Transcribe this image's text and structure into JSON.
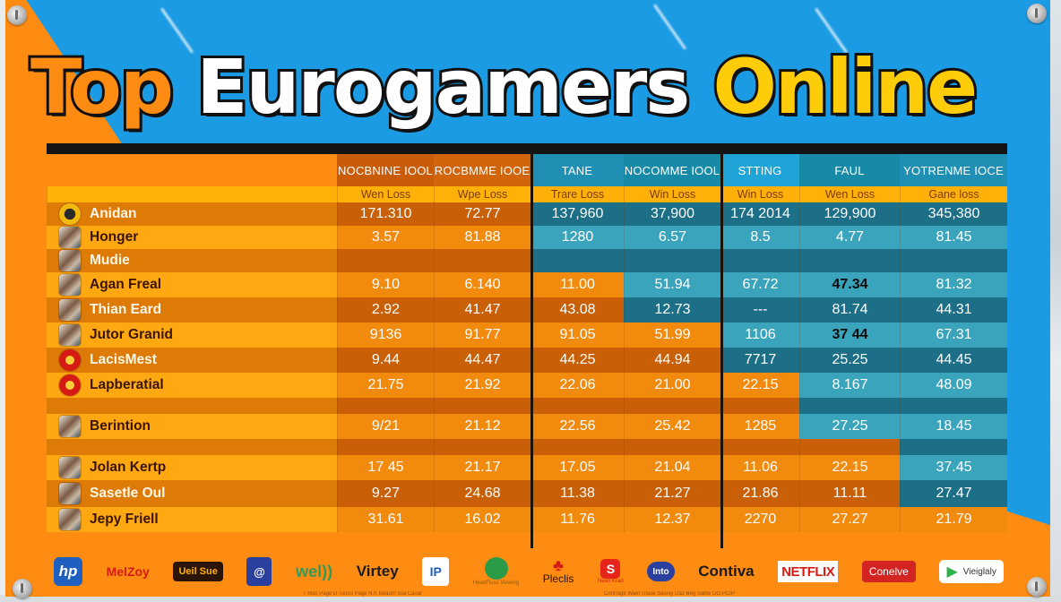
{
  "title": {
    "part1": "Top",
    "part2": "Eurogamers",
    "part3": "Online",
    "colors": {
      "part1": "#ff8c12",
      "part2": "#ffffff",
      "part3": "#ffcc0a",
      "outline": "#111111"
    }
  },
  "theme": {
    "orange": "#ff8c12",
    "blue": "#1b9be3",
    "subheader_yellow": "#ffb10a",
    "teal_dark": "#1c6f86",
    "teal_light": "#3ba4bd"
  },
  "table": {
    "columns": [
      {
        "header": "",
        "sub": ""
      },
      {
        "header": "NOCBNINE IOOL",
        "sub": "Wen Loss"
      },
      {
        "header": "ROCBMME IOOE",
        "sub": "Wpe Loss"
      },
      {
        "header": "TANE",
        "sub": "Trare Loss"
      },
      {
        "header": "NOCOMME IOOL",
        "sub": "Win Loss"
      },
      {
        "header": "STTING",
        "sub": "Win Loss"
      },
      {
        "header": "FAUL",
        "sub": "Wen Loss"
      },
      {
        "header": "YOTRENME IOCE",
        "sub": "Gane loss"
      }
    ],
    "rows": [
      {
        "name": "Anidan",
        "avatar": "emblem",
        "values": [
          "171.310",
          "72.77",
          "137,960",
          "37,900",
          "174 2014",
          "129,900",
          "345,380"
        ]
      },
      {
        "name": "Honger",
        "avatar": "photo",
        "values": [
          "3.57",
          "81.88",
          "1280",
          "6.57",
          "8.5",
          "4.77",
          "81.45"
        ]
      },
      {
        "name": "Mudie",
        "avatar": "photo",
        "values": [
          "",
          "",
          "",
          "",
          "",
          "",
          ""
        ]
      },
      {
        "name": "Agan Freal",
        "avatar": "photo",
        "values": [
          "9.10",
          "6.140",
          "11.00",
          "51.94",
          "67.72",
          "47.34",
          "81.32"
        ]
      },
      {
        "name": "Thian Eard",
        "avatar": "photo",
        "values": [
          "2.92",
          "41.47",
          "43.08",
          "12.73",
          "---",
          "81.74",
          "44.31"
        ]
      },
      {
        "name": "Jutor Granid",
        "avatar": "photo",
        "values": [
          "9136",
          "91.77",
          "91.05",
          "51.99",
          "1106",
          "37 44",
          "67.31"
        ]
      },
      {
        "name": "LacisMest",
        "avatar": "red-circle",
        "values": [
          "9.44",
          "44.47",
          "44.25",
          "44.94",
          "7717",
          "25.25",
          "44.45"
        ]
      },
      {
        "name": "Lapberatial",
        "avatar": "red-circle",
        "values": [
          "21.75",
          "21.92",
          "22.06",
          "21.00",
          "22.15",
          "8.167",
          "48.09"
        ]
      },
      {
        "name": "",
        "avatar": "",
        "values": [
          "",
          "",
          "",
          "",
          "",
          "",
          ""
        ]
      },
      {
        "name": "Berintion",
        "avatar": "photo",
        "values": [
          "9/21",
          "21.12",
          "22.56",
          "25.42",
          "1285",
          "27.25",
          "18.45"
        ]
      },
      {
        "name": "",
        "avatar": "",
        "values": [
          "",
          "",
          "",
          "",
          "",
          "",
          ""
        ]
      },
      {
        "name": "Jolan Kertp",
        "avatar": "photo",
        "values": [
          "17 45",
          "21.17",
          "17.05",
          "21.04",
          "11.06",
          "22.15",
          "37.45"
        ]
      },
      {
        "name": "Sasetle Oul",
        "avatar": "photo",
        "values": [
          "9.27",
          "24.68",
          "11.38",
          "21.27",
          "21.86",
          "11.11",
          "27.47"
        ]
      },
      {
        "name": "Jepy Friell",
        "avatar": "photo",
        "values": [
          "31.61",
          "16.02",
          "11.76",
          "12.37",
          "2270",
          "27.27",
          "21.79"
        ]
      }
    ]
  },
  "sponsors": [
    {
      "name": "hp",
      "style": "hp"
    },
    {
      "name": "MelZoy",
      "style": "red-text"
    },
    {
      "name": "Ueil Sue",
      "style": "boxed-dark"
    },
    {
      "name": "@",
      "style": "blue-square"
    },
    {
      "name": "wel))",
      "style": "green-text"
    },
    {
      "name": "Virtey",
      "style": "dark-text"
    },
    {
      "name": "IP",
      "style": "white-square"
    },
    {
      "name": "HeadFluss Viewing",
      "style": "green-circle"
    },
    {
      "name": "Pleclis",
      "style": "playstation"
    },
    {
      "name": "Neen Krad",
      "style": "red-s"
    },
    {
      "name": "Into",
      "style": "blue-pill"
    },
    {
      "name": "Contiva",
      "style": "dark-text"
    },
    {
      "name": "NETFLIX",
      "style": "netflix"
    },
    {
      "name": "Conelve",
      "style": "red-box"
    },
    {
      "name": "Vieiglaly",
      "style": "play-store"
    }
  ],
  "fineprint": {
    "left": "T Mas Page D Tonzo Page N.K Beaum osa Caoar",
    "right": "Contrage Waer Ulase Saoniy Daz Beg Sable OO PCIP"
  }
}
